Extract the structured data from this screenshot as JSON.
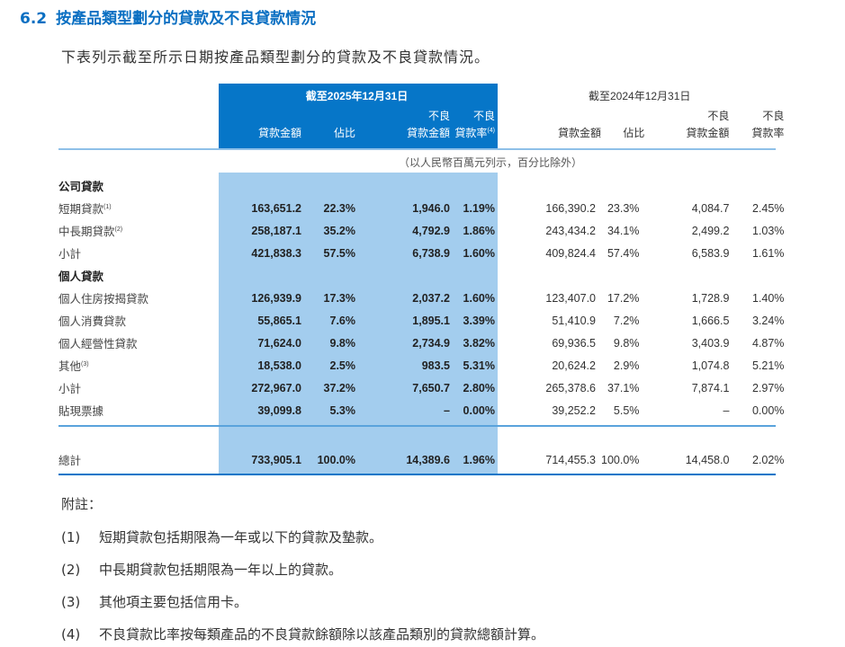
{
  "section": {
    "number": "6.2",
    "title": "按產品類型劃分的貸款及不良貸款情況"
  },
  "intro": "下表列示截至所示日期按產品類型劃分的貸款及不良貸款情況。",
  "header": {
    "period_2025": "截至2025年12月31日",
    "period_2024": "截至2024年12月31日",
    "col_loan": "貸款金額",
    "col_ratio": "佔比",
    "col_npl_top": "不良",
    "col_npl_bottom": "貸款金額",
    "col_rate_top": "不良",
    "col_rate_bottom": "貸款率",
    "rate_note_2025": "(4)",
    "unit": "（以人民幣百萬元列示，百分比除外）"
  },
  "rows": [
    {
      "type": "section",
      "label": "公司貸款"
    },
    {
      "label": "短期貸款",
      "note": "(1)",
      "v": [
        "163,651.2",
        "22.3%",
        "1,946.0",
        "1.19%",
        "166,390.2",
        "23.3%",
        "4,084.7",
        "2.45%"
      ]
    },
    {
      "label": "中長期貸款",
      "note": "(2)",
      "v": [
        "258,187.1",
        "35.2%",
        "4,792.9",
        "1.86%",
        "243,434.2",
        "34.1%",
        "2,499.2",
        "1.03%"
      ]
    },
    {
      "label": "小計",
      "note": "",
      "v": [
        "421,838.3",
        "57.5%",
        "6,738.9",
        "1.60%",
        "409,824.4",
        "57.4%",
        "6,583.9",
        "1.61%"
      ]
    },
    {
      "type": "section",
      "label": "個人貸款"
    },
    {
      "label": "個人住房按揭貸款",
      "note": "",
      "v": [
        "126,939.9",
        "17.3%",
        "2,037.2",
        "1.60%",
        "123,407.0",
        "17.2%",
        "1,728.9",
        "1.40%"
      ]
    },
    {
      "label": "個人消費貸款",
      "note": "",
      "v": [
        "55,865.1",
        "7.6%",
        "1,895.1",
        "3.39%",
        "51,410.9",
        "7.2%",
        "1,666.5",
        "3.24%"
      ]
    },
    {
      "label": "個人經營性貸款",
      "note": "",
      "v": [
        "71,624.0",
        "9.8%",
        "2,734.9",
        "3.82%",
        "69,936.5",
        "9.8%",
        "3,403.9",
        "4.87%"
      ]
    },
    {
      "label": "其他",
      "note": "(3)",
      "v": [
        "18,538.0",
        "2.5%",
        "983.5",
        "5.31%",
        "20,624.2",
        "2.9%",
        "1,074.8",
        "5.21%"
      ]
    },
    {
      "label": "小計",
      "note": "",
      "v": [
        "272,967.0",
        "37.2%",
        "7,650.7",
        "2.80%",
        "265,378.6",
        "37.1%",
        "7,874.1",
        "2.97%"
      ]
    },
    {
      "label": "貼現票據",
      "note": "",
      "v": [
        "39,099.8",
        "5.3%",
        "–",
        "0.00%",
        "39,252.2",
        "5.5%",
        "–",
        "0.00%"
      ]
    }
  ],
  "total": {
    "label": "總計",
    "v": [
      "733,905.1",
      "100.0%",
      "14,389.6",
      "1.96%",
      "714,455.3",
      "100.0%",
      "14,458.0",
      "2.02%"
    ]
  },
  "notes": {
    "heading": "附註：",
    "items": [
      {
        "num": "(1)",
        "text": "短期貸款包括期限為一年或以下的貸款及墊款。"
      },
      {
        "num": "(2)",
        "text": "中長期貸款包括期限為一年以上的貸款。"
      },
      {
        "num": "(3)",
        "text": "其他項主要包括信用卡。"
      },
      {
        "num": "(4)",
        "text": "不良貸款比率按每類產品的不良貸款餘額除以該產品類別的貸款總額計算。"
      }
    ]
  }
}
